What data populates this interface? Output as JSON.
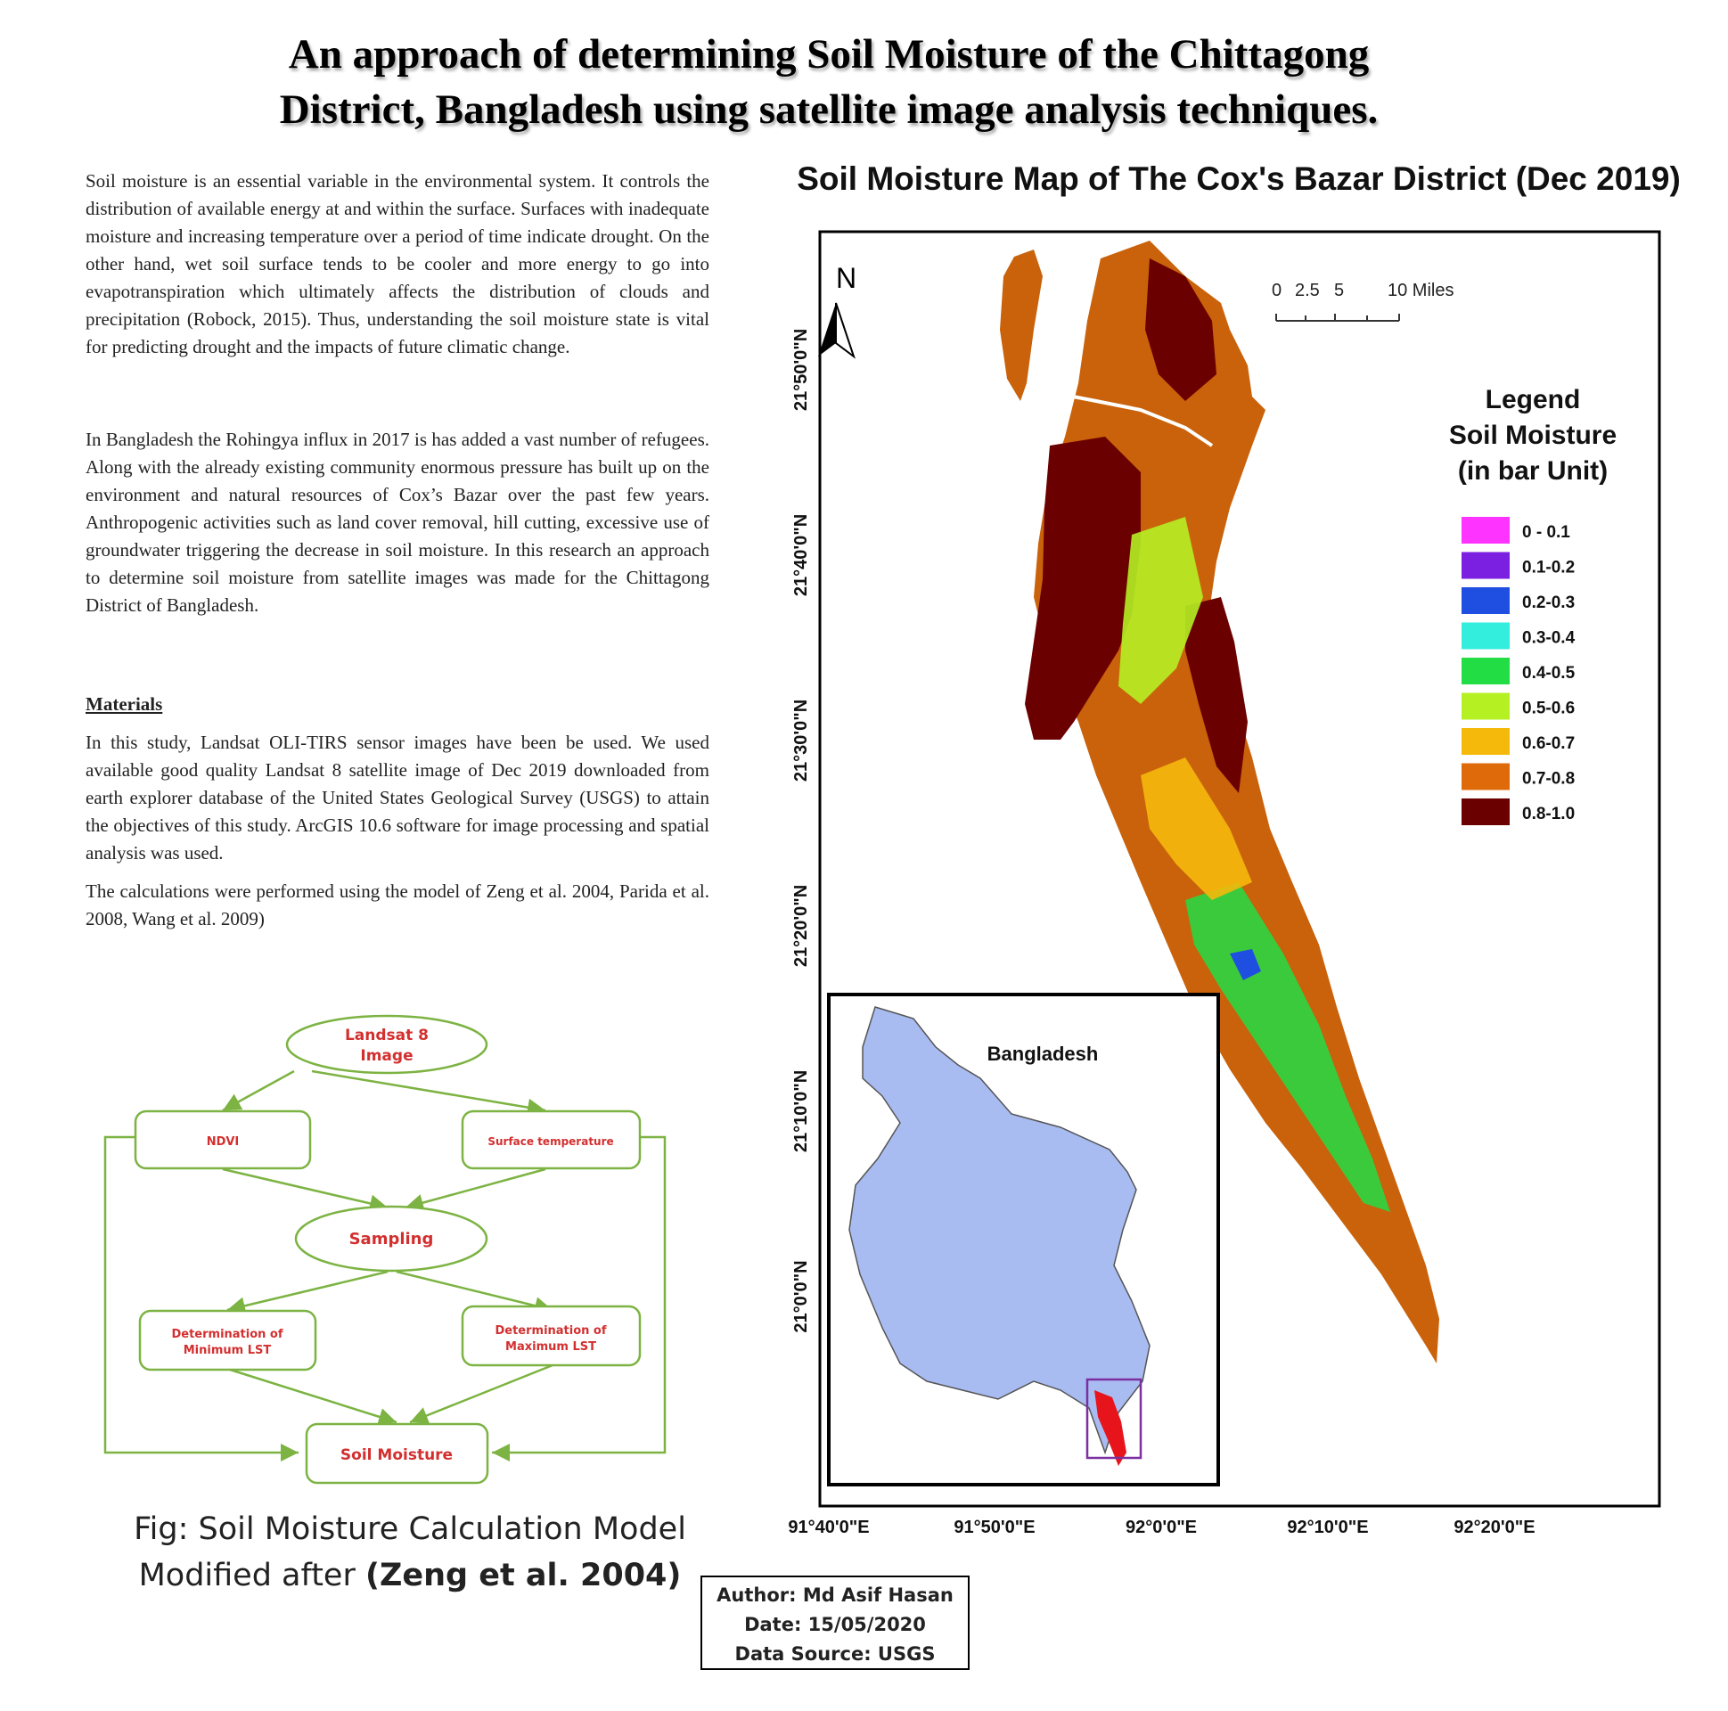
{
  "title": {
    "line1": "An approach of determining Soil Moisture  of the Chittagong",
    "line2": "District, Bangladesh using satellite image analysis techniques."
  },
  "text": {
    "para1": "Soil moisture is an essential variable in the environmental system. It controls the distribution of available energy at and within the surface. Surfaces with inadequate moisture and increasing temperature over a period of time indicate drought. On the other hand, wet soil surface tends to be cooler and more energy to go into evapotranspiration which ultimately affects the distribution of clouds and precipitation (Robock, 2015).  Thus, understanding the soil moisture state is vital for predicting drought and the impacts of future climatic change.",
    "para2": "In Bangladesh the Rohingya influx in 2017 is has added a vast number of refugees. Along with the already existing community enormous pressure has built up on the environment and natural resources of Cox’s Bazar over the past few years. Anthropogenic activities such as land cover removal, hill cutting, excessive use of groundwater triggering the decrease in soil moisture. In this research an approach to determine soil moisture from satellite images was made for the Chittagong District of Bangladesh.",
    "materials_heading": "Materials",
    "para3": "In this study, Landsat OLI-TIRS sensor images have been be used. We used available good quality Landsat 8 satellite image of Dec 2019 downloaded from earth explorer database of the United States Geological Survey (USGS) to attain the objectives of this study. ArcGIS 10.6 software for image processing and spatial analysis was used.",
    "para4": "The calculations were performed using the model of  Zeng et al. 2004, Parida et al. 2008, Wang et al. 2009)"
  },
  "flowchart": {
    "node_landsat_1": "Landsat 8",
    "node_landsat_2": "Image",
    "node_ndvi": "NDVI",
    "node_surface_temp": "Surface temperature",
    "node_sampling": "Sampling",
    "node_min_1": "Determination of",
    "node_min_2": "Minimum LST",
    "node_max_1": "Determination of",
    "node_max_2": "Maximum LST",
    "node_soil": "Soil Moisture",
    "stroke_color": "#7cb342",
    "text_color": "#d32f2f"
  },
  "caption": {
    "line1": "Fig: Soil Moisture Calculation Model",
    "line2_plain": "Modified after ",
    "line2_bold": "(Zeng et al. 2004)"
  },
  "author": {
    "line1": "Author: Md Asif Hasan",
    "line2": "Date: 15/05/2020",
    "line3": "Data Source: USGS"
  },
  "map": {
    "title": "Soil Moisture Map of The Cox's Bazar District (Dec   2019)",
    "north_label": "N",
    "scale_labels": [
      "0",
      "2.5",
      "5",
      "10 Miles"
    ],
    "legend_title": [
      "Legend",
      "Soil Moisture",
      "(in bar Unit)"
    ],
    "legend": [
      {
        "label": "0  - 0.1",
        "color": "#ff33ff"
      },
      {
        "label": "0.1-0.2",
        "color": "#7b1fe0"
      },
      {
        "label": "0.2-0.3",
        "color": "#1f4fe0"
      },
      {
        "label": "0.3-0.4",
        "color": "#33eedd"
      },
      {
        "label": "0.4-0.5",
        "color": "#22dd44"
      },
      {
        "label": "0.5-0.6",
        "color": "#b5f023"
      },
      {
        "label": "0.6-0.7",
        "color": "#f5b90c"
      },
      {
        "label": "0.7-0.8",
        "color": "#df6a09"
      },
      {
        "label": "0.8-1.0",
        "color": "#6b0000"
      }
    ],
    "lat_labels": [
      "21°50'0\"N",
      "21°40'0\"N",
      "21°30'0\"N",
      "21°20'0\"N",
      "21°10'0\"N",
      "21°0'0\"N"
    ],
    "lon_labels": [
      "91°40'0\"E",
      "91°50'0\"E",
      "92°0'0\"E",
      "92°10'0\"E",
      "92°20'0\"E"
    ],
    "inset_label": "Bangladesh",
    "inset_fill": "#a9bcf2",
    "inset_highlight": "#e8141c",
    "inset_box_color": "#7b2fa0"
  }
}
